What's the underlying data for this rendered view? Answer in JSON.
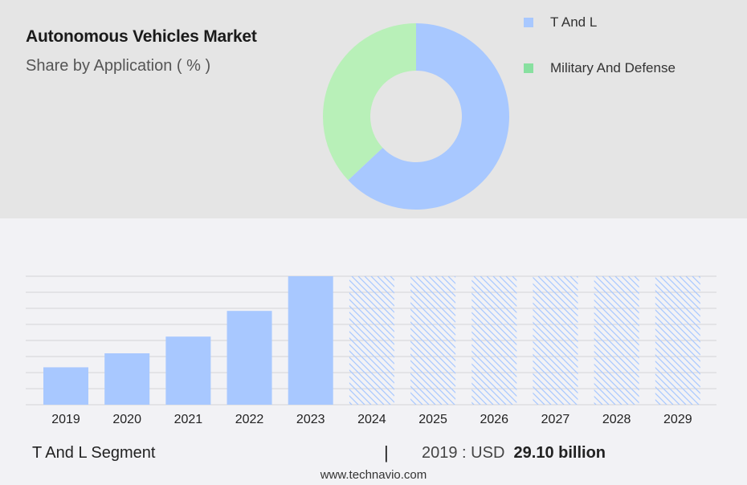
{
  "header": {
    "title": "Autonomous Vehicles Market",
    "subtitle": "Share by Application ( % )"
  },
  "chart_data": [
    {
      "type": "pie",
      "variant": "donut",
      "title": "Autonomous Vehicles Market",
      "subtitle": "Share by Application ( % )",
      "labels": [
        "T And L",
        "Military And Defense"
      ],
      "values": [
        63,
        37
      ],
      "colors": [
        "#a8c8ff",
        "#b8f0b8"
      ],
      "legend_position": "top-right"
    },
    {
      "type": "bar",
      "categories": [
        "2019",
        "2020",
        "2021",
        "2022",
        "2023",
        "2024",
        "2025",
        "2026",
        "2027",
        "2028",
        "2029"
      ],
      "values": [
        29.1,
        40.0,
        53.0,
        73.0,
        100.0,
        100.0,
        100.0,
        100.0,
        100.0,
        100.0,
        100.0
      ],
      "forecast_from": "2024",
      "ylim": [
        0,
        100
      ],
      "grid": true,
      "bar_color": "#a8c8ff"
    }
  ],
  "legend": {
    "items": [
      {
        "label": "T And L",
        "color": "#a8c8ff"
      },
      {
        "label": "Military And Defense",
        "color": "#88e0a0"
      }
    ]
  },
  "footer": {
    "segment": "T And L Segment",
    "divider": "|",
    "year_label": "2019 : USD",
    "value": "29.10 billion",
    "source": "www.technavio.com"
  }
}
